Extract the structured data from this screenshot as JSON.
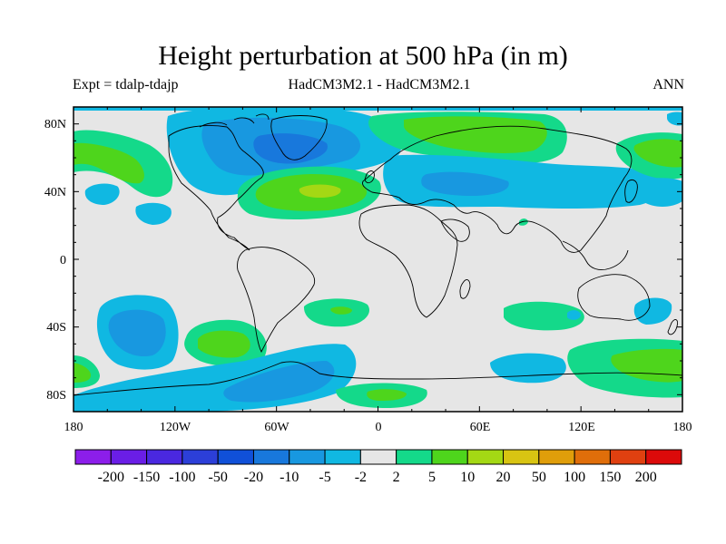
{
  "title": "Height perturbation at 500 hPa (in m)",
  "subtitle_left": "Expt = tdalp-tdajp",
  "subtitle_center": "HadCM3M2.1 - HadCM3M2.1",
  "subtitle_right": "ANN",
  "x_ticks": [
    "180",
    "120W",
    "60W",
    "0",
    "60E",
    "120E",
    "180"
  ],
  "y_ticks": [
    "80N",
    "40N",
    "0",
    "40S",
    "80S"
  ],
  "colorbar": {
    "labels": [
      "-200",
      "-150",
      "-100",
      "-50",
      "-20",
      "-10",
      "-5",
      "-2",
      "2",
      "5",
      "10",
      "20",
      "50",
      "100",
      "150",
      "200"
    ],
    "colors": [
      "#8c1eea",
      "#6a1ee6",
      "#4a28e0",
      "#2c3fd8",
      "#1050d8",
      "#1878dc",
      "#1898e0",
      "#10b8e2",
      "#e6e6e6",
      "#14d98a",
      "#4ed51c",
      "#a4d814",
      "#d8c412",
      "#e09e0a",
      "#e06e0a",
      "#e04010",
      "#dc0a0a"
    ]
  },
  "background_color": "#e6e6e6"
}
